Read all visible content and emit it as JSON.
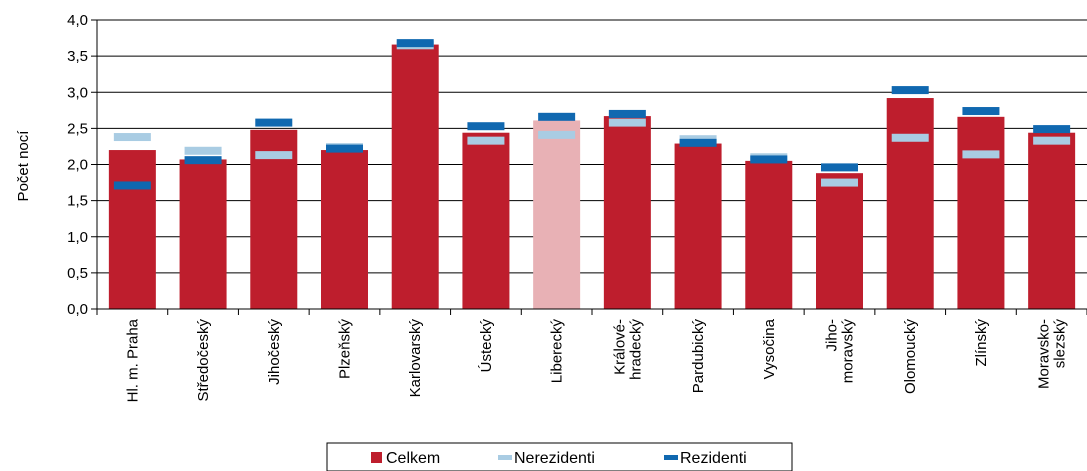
{
  "chart_data": {
    "type": "bar",
    "title": "",
    "xlabel": "",
    "ylabel": "Počet nocí",
    "ylim": [
      0,
      4
    ],
    "yticks": [
      "0,0",
      "0,5",
      "1,0",
      "1,5",
      "2,0",
      "2,5",
      "3,0",
      "3,5",
      "4,0"
    ],
    "ytick_values": [
      0,
      0.5,
      1,
      1.5,
      2,
      2.5,
      3,
      3.5,
      4
    ],
    "grid": true,
    "legend_position": "bottom",
    "categories": [
      [
        "Hl. m. Praha"
      ],
      [
        "Středočeský"
      ],
      [
        "Jihočeský"
      ],
      [
        "Plzeňský"
      ],
      [
        "Karlovarský"
      ],
      [
        "Ústecký"
      ],
      [
        "Liberecký"
      ],
      [
        "Králové-",
        "hradecký"
      ],
      [
        "Pardubický"
      ],
      [
        "Vysočina"
      ],
      [
        "Jiho-",
        "moravský"
      ],
      [
        "Olomoucký"
      ],
      [
        "Zlínský"
      ],
      [
        "Moravsko-",
        "slezský"
      ]
    ],
    "series": [
      {
        "name": "Celkem",
        "kind": "bar",
        "color": "#be1e2d",
        "highlight_color": "#e8b1b5",
        "highlight_index": 6,
        "values": [
          2.2,
          2.07,
          2.48,
          2.2,
          3.66,
          2.44,
          2.61,
          2.67,
          2.29,
          2.05,
          1.88,
          2.92,
          2.66,
          2.44
        ]
      },
      {
        "name": "Nerezidenti",
        "kind": "marker",
        "color": "#a9cce3",
        "values": [
          2.38,
          2.19,
          2.13,
          2.24,
          3.65,
          2.33,
          2.41,
          2.58,
          2.35,
          2.1,
          1.75,
          2.37,
          2.14,
          2.33
        ]
      },
      {
        "name": "Rezidenti",
        "kind": "marker",
        "color": "#1068b0",
        "values": [
          1.71,
          2.06,
          2.58,
          2.22,
          3.68,
          2.53,
          2.66,
          2.7,
          2.3,
          2.07,
          1.96,
          3.03,
          2.74,
          2.49
        ]
      }
    ]
  }
}
